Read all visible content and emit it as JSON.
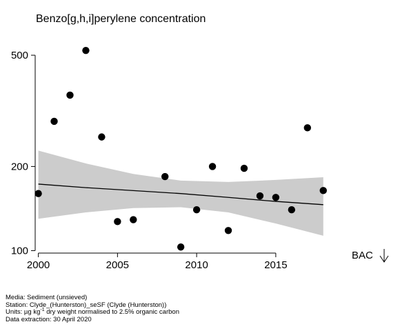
{
  "chart_data": {
    "type": "scatter",
    "title": "Benzo[g,h,i]perylene concentration",
    "xlabel": "",
    "ylabel": "",
    "y_scale": "log",
    "xlim": [
      1999.8,
      2019.1
    ],
    "ylim": [
      98,
      570
    ],
    "x_ticks": [
      2000,
      2005,
      2010,
      2015
    ],
    "x_tick_labels": [
      "2000",
      "2005",
      "2010",
      "2015"
    ],
    "y_ticks": [
      100,
      200,
      500
    ],
    "y_tick_labels": [
      "100",
      "200",
      "500"
    ],
    "points": [
      {
        "x": 2000,
        "y": 160
      },
      {
        "x": 2001,
        "y": 290
      },
      {
        "x": 2002,
        "y": 360
      },
      {
        "x": 2003,
        "y": 520
      },
      {
        "x": 2004,
        "y": 255
      },
      {
        "x": 2005,
        "y": 127
      },
      {
        "x": 2006,
        "y": 129
      },
      {
        "x": 2008,
        "y": 184
      },
      {
        "x": 2009,
        "y": 103
      },
      {
        "x": 2010,
        "y": 140
      },
      {
        "x": 2011,
        "y": 200
      },
      {
        "x": 2012,
        "y": 118
      },
      {
        "x": 2013,
        "y": 197
      },
      {
        "x": 2014,
        "y": 157
      },
      {
        "x": 2015,
        "y": 155
      },
      {
        "x": 2016,
        "y": 140
      },
      {
        "x": 2017,
        "y": 275
      },
      {
        "x": 2018,
        "y": 164
      }
    ],
    "trend": {
      "x": [
        2000,
        2003,
        2006,
        2009,
        2012,
        2015,
        2018
      ],
      "fit": [
        173,
        168,
        164,
        160,
        155,
        150,
        146
      ],
      "lower": [
        130,
        137,
        142,
        143,
        137,
        125,
        113
      ],
      "upper": [
        228,
        205,
        188,
        178,
        176,
        179,
        183
      ]
    },
    "grid": false,
    "band_color": "#cccccc",
    "point_color": "#000000",
    "annotation": {
      "text": "BAC",
      "icon": "down-arrow-icon"
    }
  },
  "footer": {
    "media": "Media: Sediment (unsieved)",
    "station": "Station: Clyde_(Hunterston)_seSF (Clyde (Hunterston))",
    "units_prefix": "Units:  µg kg",
    "units_sup": "-1",
    "units_suffix": " dry weight normalised to 2.5% organic carbon",
    "extraction": "Data extraction: 30 April 2020"
  }
}
